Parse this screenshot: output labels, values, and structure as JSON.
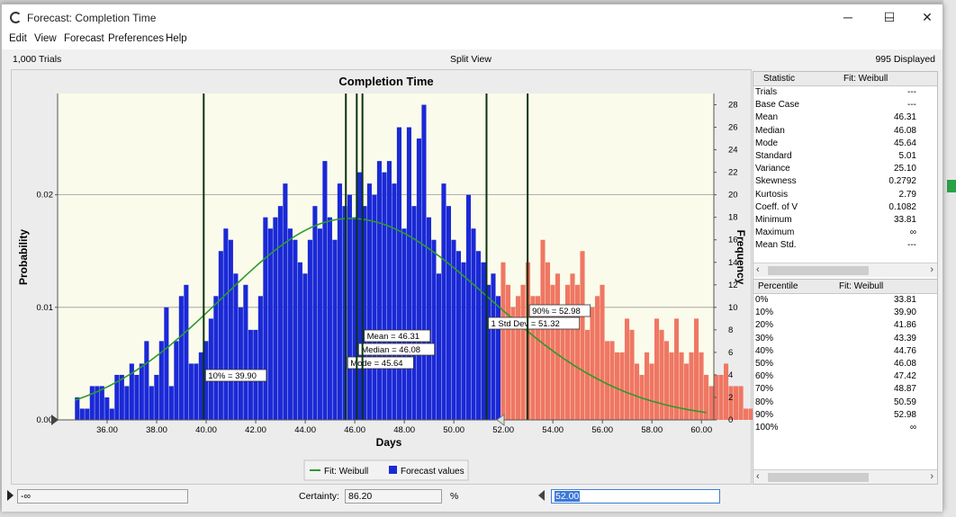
{
  "window": {
    "title": "Forecast: Completion  Time",
    "minimize_glyph": "─",
    "maximize_glyph": "☐",
    "close_glyph": "✕"
  },
  "menu": {
    "items": [
      "Edit",
      "View",
      "Forecast",
      "Preferences",
      "Help"
    ]
  },
  "info": {
    "trials": "1,000 Trials",
    "view": "Split View",
    "displayed": "995 Displayed"
  },
  "chart_data": {
    "type": "bar",
    "title": "Completion  Time",
    "xlabel": "Days",
    "ylabel_left": "Probability",
    "ylabel_right": "Frequency",
    "xlim": [
      34.0,
      60.5
    ],
    "ylim_freq": [
      0,
      29
    ],
    "y_left_ticks": [
      "0.00",
      "0.01",
      "0.02"
    ],
    "y_left_tick_values": [
      0,
      10,
      20
    ],
    "x_ticks": [
      "36.00",
      "38.00",
      "40.00",
      "42.00",
      "44.00",
      "46.00",
      "48.00",
      "50.00",
      "52.00",
      "54.00",
      "56.00",
      "58.00",
      "60.00"
    ],
    "y_right_ticks": [
      "0",
      "2",
      "4",
      "6",
      "8",
      "10",
      "12",
      "14",
      "16",
      "18",
      "20",
      "22",
      "24",
      "26",
      "28"
    ],
    "bin_start": 34.7,
    "bin_width": 0.2,
    "frequencies": [
      2,
      1,
      1,
      3,
      3,
      3,
      2,
      1,
      4,
      4,
      3,
      5,
      4,
      5,
      7,
      3,
      4,
      7,
      10,
      3,
      7,
      11,
      12,
      5,
      5,
      6,
      7,
      9,
      11,
      15,
      17,
      16,
      13,
      10,
      12,
      8,
      8,
      11,
      18,
      17,
      18,
      19,
      21,
      17,
      16,
      14,
      13,
      16,
      19,
      17,
      23,
      18,
      16,
      21,
      19,
      20,
      18,
      22,
      19,
      21,
      20,
      23,
      22,
      23,
      21,
      26,
      17,
      26,
      19,
      25,
      28,
      18,
      16,
      13,
      21,
      19,
      16,
      15,
      14,
      20,
      17,
      15,
      14,
      12,
      13,
      11,
      14,
      12,
      10,
      11,
      12,
      14,
      11,
      11,
      16,
      14,
      12,
      13,
      10,
      12,
      13,
      12,
      15,
      8,
      10,
      11,
      12,
      7,
      7,
      6,
      6,
      9,
      8,
      5,
      4,
      6,
      5,
      9,
      8,
      7,
      6,
      9,
      6,
      5,
      6,
      9,
      6,
      4,
      3,
      4,
      4,
      5,
      3,
      3,
      3,
      1,
      1,
      1,
      2,
      2,
      3,
      2,
      2,
      5,
      3,
      2,
      2,
      1,
      1,
      1
    ],
    "certainty_boundary": 52.0,
    "in_range_color": "#1a29d6",
    "out_range_color": "#ef7763",
    "fit_color": "#2e9a2e",
    "fit_peak_x": 45.8,
    "fit_peak_freq": 17.9,
    "fit_left_sd": 5.15,
    "fit_right_sd": 5.6,
    "marker_lines": [
      {
        "x": 39.9,
        "label": "10% = 39.90"
      },
      {
        "x": 45.64,
        "label": "Mode = 45.64"
      },
      {
        "x": 46.08,
        "label": "Median = 46.08"
      },
      {
        "x": 46.31,
        "label": "Mean = 46.31"
      },
      {
        "x": 51.32,
        "label": "1 Std Dev = 51.32"
      },
      {
        "x": 52.98,
        "label": "90% = 52.98"
      }
    ],
    "legend": [
      {
        "name": "Fit: Weibull",
        "color": "#2e9a2e",
        "kind": "line"
      },
      {
        "name": "Forecast values",
        "color": "#1a29d6",
        "kind": "box"
      }
    ]
  },
  "stats": {
    "header": [
      "Statistic",
      "Fit: Weibull"
    ],
    "rows": [
      {
        "k": "Trials",
        "v": "---"
      },
      {
        "k": "Base Case",
        "v": "---"
      },
      {
        "k": "Mean",
        "v": "46.31"
      },
      {
        "k": "Median",
        "v": "46.08"
      },
      {
        "k": "Mode",
        "v": "45.64"
      },
      {
        "k": "Standard",
        "v": "5.01"
      },
      {
        "k": "Variance",
        "v": "25.10"
      },
      {
        "k": "Skewness",
        "v": "0.2792"
      },
      {
        "k": "Kurtosis",
        "v": "2.79"
      },
      {
        "k": "Coeff. of V",
        "v": "0.1082"
      },
      {
        "k": "Minimum",
        "v": "33.81"
      },
      {
        "k": "Maximum",
        "v": "∞"
      },
      {
        "k": "Mean Std.",
        "v": "---"
      }
    ]
  },
  "percentiles": {
    "header": [
      "Percentile",
      "Fit: Weibull"
    ],
    "rows": [
      {
        "k": "0%",
        "v": "33.81"
      },
      {
        "k": "10%",
        "v": "39.90"
      },
      {
        "k": "20%",
        "v": "41.86"
      },
      {
        "k": "30%",
        "v": "43.39"
      },
      {
        "k": "40%",
        "v": "44.76"
      },
      {
        "k": "50%",
        "v": "46.08"
      },
      {
        "k": "60%",
        "v": "47.42"
      },
      {
        "k": "70%",
        "v": "48.87"
      },
      {
        "k": "80%",
        "v": "50.59"
      },
      {
        "k": "90%",
        "v": "52.98"
      },
      {
        "k": "100%",
        "v": "∞"
      }
    ]
  },
  "scroll": {
    "left_arrow": "‹",
    "right_arrow": "›"
  },
  "bottom": {
    "left_value": "-∞",
    "certainty_label": "Certainty:",
    "certainty_value": "86.20",
    "percent_sign": "%",
    "right_value": "52.00"
  }
}
